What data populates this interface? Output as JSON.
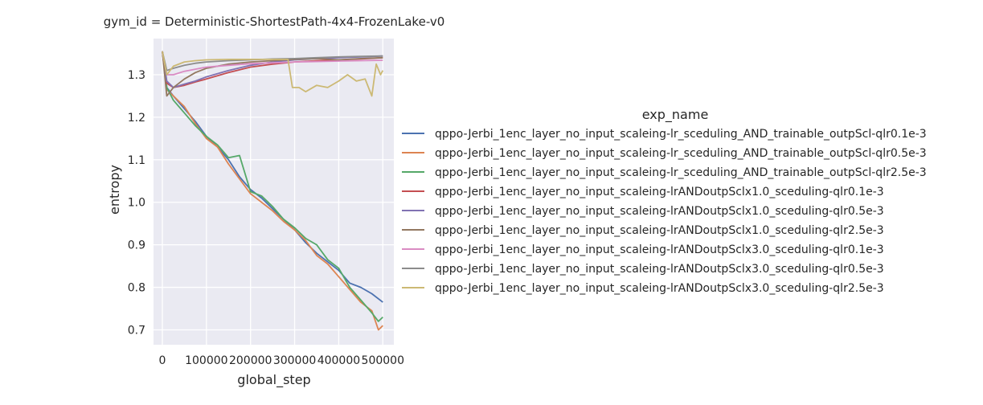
{
  "chart_data": {
    "type": "line",
    "title": "gym_id = Deterministic-ShortestPath-4x4-FrozenLake-v0",
    "xlabel": "global_step",
    "ylabel": "entropy",
    "xlim": [
      -20000,
      525000
    ],
    "ylim": [
      0.665,
      1.385
    ],
    "xticks": [
      0,
      100000,
      200000,
      300000,
      400000,
      500000
    ],
    "xtick_labels": [
      "0",
      "100000",
      "200000",
      "300000",
      "400000",
      "500000"
    ],
    "yticks": [
      0.7,
      0.8,
      0.9,
      1.0,
      1.1,
      1.2,
      1.3
    ],
    "ytick_labels": [
      "0.7",
      "0.8",
      "0.9",
      "1.0",
      "1.1",
      "1.2",
      "1.3"
    ],
    "grid": true,
    "legend": {
      "title": "exp_name",
      "placement": "right, outside the axes"
    },
    "series": [
      {
        "name": "qppo-Jerbi_1enc_layer_no_input_scaleing-lr_sceduling_AND_trainable_outpScl-qlr0.1e-3",
        "color": "#4c72b0",
        "x": [
          0,
          10000,
          25000,
          50000,
          75000,
          100000,
          125000,
          150000,
          175000,
          200000,
          225000,
          250000,
          275000,
          300000,
          325000,
          350000,
          375000,
          400000,
          425000,
          450000,
          475000,
          500000
        ],
        "y": [
          1.355,
          1.27,
          1.25,
          1.22,
          1.19,
          1.155,
          1.13,
          1.1,
          1.06,
          1.03,
          1.01,
          0.985,
          0.96,
          0.935,
          0.905,
          0.88,
          0.86,
          0.84,
          0.81,
          0.8,
          0.785,
          0.765
        ]
      },
      {
        "name": "qppo-Jerbi_1enc_layer_no_input_scaleing-lr_sceduling_AND_trainable_outpScl-qlr0.5e-3",
        "color": "#dd8452",
        "x": [
          0,
          10000,
          25000,
          50000,
          75000,
          100000,
          125000,
          150000,
          175000,
          200000,
          225000,
          250000,
          275000,
          300000,
          325000,
          350000,
          375000,
          400000,
          425000,
          450000,
          475000,
          490000,
          500000
        ],
        "y": [
          1.355,
          1.265,
          1.25,
          1.225,
          1.185,
          1.15,
          1.13,
          1.09,
          1.055,
          1.02,
          1.0,
          0.98,
          0.955,
          0.935,
          0.91,
          0.875,
          0.855,
          0.825,
          0.795,
          0.765,
          0.745,
          0.7,
          0.71
        ]
      },
      {
        "name": "qppo-Jerbi_1enc_layer_no_input_scaleing-lr_sceduling_AND_trainable_outpScl-qlr2.5e-3",
        "color": "#55a868",
        "x": [
          0,
          10000,
          25000,
          50000,
          75000,
          100000,
          125000,
          150000,
          175000,
          200000,
          225000,
          250000,
          275000,
          300000,
          325000,
          350000,
          375000,
          400000,
          425000,
          450000,
          475000,
          490000,
          500000
        ],
        "y": [
          1.355,
          1.27,
          1.24,
          1.21,
          1.18,
          1.155,
          1.135,
          1.105,
          1.11,
          1.025,
          1.015,
          0.99,
          0.96,
          0.94,
          0.915,
          0.9,
          0.865,
          0.845,
          0.8,
          0.77,
          0.74,
          0.72,
          0.73
        ]
      },
      {
        "name": "qppo-Jerbi_1enc_layer_no_input_scaleing-lrANDoutpSclx1.0_sceduling-qlr0.1e-3",
        "color": "#c44e52",
        "x": [
          0,
          10000,
          25000,
          50000,
          75000,
          100000,
          150000,
          200000,
          250000,
          300000,
          350000,
          400000,
          450000,
          500000
        ],
        "y": [
          1.355,
          1.28,
          1.27,
          1.275,
          1.283,
          1.29,
          1.305,
          1.318,
          1.325,
          1.33,
          1.333,
          1.335,
          1.337,
          1.34
        ]
      },
      {
        "name": "qppo-Jerbi_1enc_layer_no_input_scaleing-lrANDoutpSclx1.0_sceduling-qlr0.5e-3",
        "color": "#8172b3",
        "x": [
          0,
          10000,
          25000,
          50000,
          75000,
          100000,
          150000,
          200000,
          250000,
          300000,
          350000,
          400000,
          450000,
          500000
        ],
        "y": [
          1.355,
          1.285,
          1.27,
          1.278,
          1.285,
          1.295,
          1.31,
          1.322,
          1.33,
          1.335,
          1.338,
          1.34,
          1.342,
          1.344
        ]
      },
      {
        "name": "qppo-Jerbi_1enc_layer_no_input_scaleing-lrANDoutpSclx1.0_sceduling-qlr2.5e-3",
        "color": "#937860",
        "x": [
          0,
          10000,
          25000,
          50000,
          75000,
          100000,
          150000,
          200000,
          250000,
          300000,
          350000,
          400000,
          450000,
          500000
        ],
        "y": [
          1.355,
          1.25,
          1.27,
          1.29,
          1.305,
          1.315,
          1.325,
          1.33,
          1.333,
          1.336,
          1.338,
          1.335,
          1.338,
          1.34
        ]
      },
      {
        "name": "qppo-Jerbi_1enc_layer_no_input_scaleing-lrANDoutpSclx3.0_sceduling-qlr0.1e-3",
        "color": "#da8bc3",
        "x": [
          0,
          10000,
          25000,
          50000,
          75000,
          100000,
          150000,
          200000,
          250000,
          300000,
          350000,
          400000,
          450000,
          500000
        ],
        "y": [
          1.355,
          1.3,
          1.3,
          1.308,
          1.313,
          1.318,
          1.322,
          1.326,
          1.328,
          1.33,
          1.331,
          1.332,
          1.333,
          1.334
        ]
      },
      {
        "name": "qppo-Jerbi_1enc_layer_no_input_scaleing-lrANDoutpSclx3.0_sceduling-qlr0.5e-3",
        "color": "#8c8c8c",
        "x": [
          0,
          10000,
          25000,
          50000,
          75000,
          100000,
          150000,
          200000,
          250000,
          300000,
          350000,
          400000,
          450000,
          500000
        ],
        "y": [
          1.355,
          1.31,
          1.315,
          1.322,
          1.327,
          1.33,
          1.333,
          1.335,
          1.337,
          1.338,
          1.34,
          1.342,
          1.343,
          1.344
        ]
      },
      {
        "name": "qppo-Jerbi_1enc_layer_no_input_scaleing-lrANDoutpSclx3.0_sceduling-qlr2.5e-3",
        "color": "#ccb974",
        "x": [
          0,
          10000,
          25000,
          50000,
          75000,
          100000,
          150000,
          200000,
          250000,
          285000,
          295000,
          310000,
          325000,
          350000,
          375000,
          400000,
          420000,
          440000,
          460000,
          475000,
          485000,
          495000,
          500000
        ],
        "y": [
          1.355,
          1.3,
          1.32,
          1.33,
          1.333,
          1.335,
          1.336,
          1.336,
          1.336,
          1.336,
          1.27,
          1.27,
          1.26,
          1.275,
          1.27,
          1.285,
          1.3,
          1.285,
          1.29,
          1.25,
          1.325,
          1.3,
          1.31
        ]
      }
    ]
  }
}
